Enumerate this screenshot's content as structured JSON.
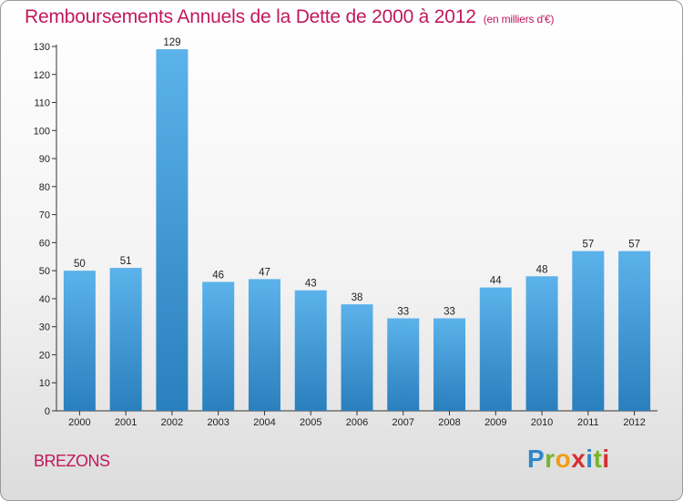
{
  "header": {
    "title": "Remboursements Annuels de la Dette de 2000 à 2012",
    "unit": "(en milliers d'€)"
  },
  "commune": "BREZONS",
  "logo": {
    "letters": [
      "P",
      "r",
      "o",
      "x",
      "i",
      "t",
      "i"
    ]
  },
  "colors": {
    "title": "#c2185b",
    "bar_top": "#5cb2ea",
    "bar_bottom": "#2a7fbd",
    "axis": "#333333"
  },
  "chart_data": {
    "type": "bar",
    "title": "Remboursements Annuels de la Dette de 2000 à 2012",
    "subtitle": "(en milliers d'€)",
    "categories": [
      "2000",
      "2001",
      "2002",
      "2003",
      "2004",
      "2005",
      "2006",
      "2007",
      "2008",
      "2009",
      "2010",
      "2011",
      "2012"
    ],
    "values": [
      50,
      51,
      129,
      46,
      47,
      43,
      38,
      33,
      33,
      44,
      48,
      57,
      57
    ],
    "ylim": [
      0,
      130
    ],
    "yticks": [
      0,
      10,
      20,
      30,
      40,
      50,
      60,
      70,
      80,
      90,
      100,
      110,
      120,
      130
    ],
    "xlabel": "",
    "ylabel": "",
    "grid": false,
    "data_labels": true
  }
}
